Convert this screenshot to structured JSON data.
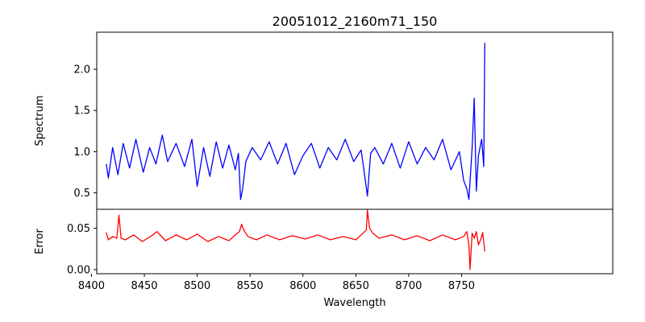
{
  "chart_data": {
    "type": "line",
    "title": "20051012_2160m71_150",
    "xlabel": "Wavelength",
    "xlim": [
      8405,
      8893
    ],
    "x_ticks": [
      8400,
      8450,
      8500,
      8550,
      8600,
      8650,
      8700,
      8750
    ],
    "grid": false,
    "panels": [
      {
        "ylabel": "Spectrum",
        "ylim": [
          0.3,
          2.45
        ],
        "y_ticks": [
          "0.5",
          "1.0",
          "1.5",
          "2.0"
        ],
        "series": [
          {
            "color": "#0000ff",
            "x": [
              8414,
              8416,
              8420,
              8425,
              8430,
              8436,
              8442,
              8449,
              8455,
              8461,
              8467,
              8472,
              8480,
              8488,
              8495,
              8500,
              8506,
              8512,
              8518,
              8524,
              8530,
              8536,
              8539,
              8541,
              8543,
              8546,
              8552,
              8560,
              8568,
              8576,
              8584,
              8592,
              8600,
              8608,
              8616,
              8624,
              8632,
              8640,
              8648,
              8655,
              8658,
              8661,
              8664,
              8668,
              8676,
              8684,
              8692,
              8700,
              8708,
              8716,
              8724,
              8732,
              8740,
              8748,
              8752,
              8755,
              8757,
              8760,
              8762,
              8764,
              8766,
              8769,
              8771,
              8772
            ],
            "values": [
              0.85,
              0.68,
              1.05,
              0.72,
              1.1,
              0.8,
              1.15,
              0.75,
              1.05,
              0.85,
              1.2,
              0.88,
              1.1,
              0.82,
              1.15,
              0.58,
              1.05,
              0.7,
              1.12,
              0.8,
              1.08,
              0.78,
              0.98,
              0.42,
              0.55,
              0.88,
              1.05,
              0.9,
              1.12,
              0.85,
              1.1,
              0.72,
              0.95,
              1.1,
              0.8,
              1.05,
              0.9,
              1.15,
              0.88,
              1.02,
              0.75,
              0.46,
              0.98,
              1.05,
              0.85,
              1.1,
              0.8,
              1.12,
              0.85,
              1.05,
              0.9,
              1.15,
              0.78,
              1.0,
              0.65,
              0.55,
              0.42,
              1.05,
              1.65,
              0.52,
              0.95,
              1.15,
              0.82,
              2.32
            ]
          }
        ]
      },
      {
        "ylabel": "Error",
        "ylim": [
          -0.005,
          0.073
        ],
        "y_ticks": [
          "0.00",
          "0.05"
        ],
        "series": [
          {
            "color": "#ff0000",
            "x": [
              8414,
              8416,
              8420,
              8424,
              8426,
              8428,
              8432,
              8440,
              8448,
              8456,
              8462,
              8470,
              8480,
              8490,
              8500,
              8510,
              8520,
              8530,
              8536,
              8540,
              8542,
              8544,
              8548,
              8556,
              8566,
              8578,
              8590,
              8602,
              8614,
              8626,
              8638,
              8650,
              8656,
              8660,
              8661,
              8663,
              8666,
              8672,
              8684,
              8696,
              8708,
              8720,
              8732,
              8744,
              8752,
              8755,
              8757,
              8758,
              8760,
              8762,
              8764,
              8766,
              8768,
              8770,
              8772
            ],
            "values": [
              0.045,
              0.036,
              0.04,
              0.038,
              0.066,
              0.038,
              0.036,
              0.042,
              0.034,
              0.04,
              0.046,
              0.035,
              0.042,
              0.036,
              0.043,
              0.034,
              0.04,
              0.035,
              0.042,
              0.046,
              0.055,
              0.048,
              0.04,
              0.036,
              0.042,
              0.036,
              0.041,
              0.037,
              0.042,
              0.036,
              0.04,
              0.036,
              0.043,
              0.048,
              0.072,
              0.05,
              0.044,
              0.038,
              0.042,
              0.036,
              0.041,
              0.035,
              0.042,
              0.036,
              0.04,
              0.046,
              0.03,
              0.0,
              0.044,
              0.038,
              0.046,
              0.03,
              0.036,
              0.045,
              0.022
            ]
          }
        ]
      }
    ]
  }
}
